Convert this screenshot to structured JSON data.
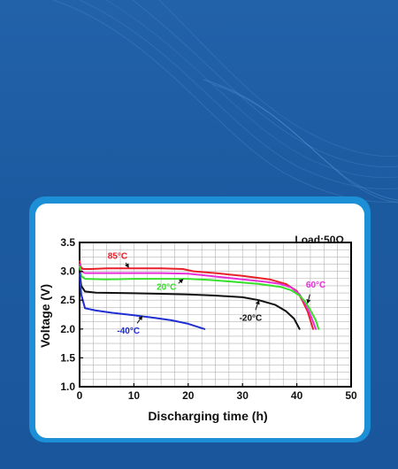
{
  "chart_data": {
    "type": "line",
    "title": "",
    "xlabel": "Discharging time (h)",
    "ylabel": "Voltage (V)",
    "xlim": [
      0,
      50
    ],
    "ylim": [
      1.0,
      3.5
    ],
    "xticks": [
      "0",
      "10",
      "20",
      "30",
      "40",
      "50"
    ],
    "yticks": [
      "1.0",
      "1.5",
      "2.0",
      "2.5",
      "3.0",
      "3.5"
    ],
    "grid": true,
    "annotation": "Load:50Ω",
    "series": [
      {
        "name": "85°C",
        "color": "#e8202a",
        "points": [
          [
            0,
            3.18
          ],
          [
            0.2,
            3.08
          ],
          [
            0.6,
            3.04
          ],
          [
            2,
            3.04
          ],
          [
            5,
            3.05
          ],
          [
            10,
            3.05
          ],
          [
            15,
            3.05
          ],
          [
            19,
            3.04
          ],
          [
            21,
            3.0
          ],
          [
            25,
            2.97
          ],
          [
            30,
            2.92
          ],
          [
            35,
            2.86
          ],
          [
            38,
            2.78
          ],
          [
            40,
            2.66
          ],
          [
            41,
            2.5
          ],
          [
            42,
            2.3
          ],
          [
            42.5,
            2.15
          ],
          [
            43,
            2.0
          ]
        ]
      },
      {
        "name": "60°C",
        "color": "#e62fd8",
        "points": [
          [
            0,
            3.12
          ],
          [
            0.3,
            3.0
          ],
          [
            1,
            2.97
          ],
          [
            5,
            2.97
          ],
          [
            10,
            2.97
          ],
          [
            15,
            2.97
          ],
          [
            20,
            2.96
          ],
          [
            22,
            2.94
          ],
          [
            26,
            2.9
          ],
          [
            30,
            2.86
          ],
          [
            34,
            2.82
          ],
          [
            37,
            2.78
          ],
          [
            39,
            2.72
          ],
          [
            40.5,
            2.6
          ],
          [
            41.5,
            2.45
          ],
          [
            42.5,
            2.25
          ],
          [
            43.5,
            2.0
          ]
        ]
      },
      {
        "name": "20°C",
        "color": "#37e02a",
        "points": [
          [
            0,
            3.08
          ],
          [
            0.3,
            2.92
          ],
          [
            1,
            2.87
          ],
          [
            5,
            2.86
          ],
          [
            10,
            2.87
          ],
          [
            15,
            2.87
          ],
          [
            20,
            2.87
          ],
          [
            24,
            2.85
          ],
          [
            28,
            2.82
          ],
          [
            33,
            2.78
          ],
          [
            37,
            2.73
          ],
          [
            39,
            2.67
          ],
          [
            40.5,
            2.58
          ],
          [
            41.5,
            2.48
          ],
          [
            42.5,
            2.33
          ],
          [
            43.5,
            2.15
          ],
          [
            44,
            2.0
          ]
        ]
      },
      {
        "name": "-20°C",
        "color": "#111111",
        "points": [
          [
            0,
            3.0
          ],
          [
            0.3,
            2.75
          ],
          [
            1,
            2.65
          ],
          [
            3,
            2.63
          ],
          [
            10,
            2.62
          ],
          [
            15,
            2.61
          ],
          [
            20,
            2.6
          ],
          [
            25,
            2.58
          ],
          [
            30,
            2.55
          ],
          [
            33,
            2.5
          ],
          [
            36,
            2.42
          ],
          [
            38,
            2.31
          ],
          [
            39.5,
            2.18
          ],
          [
            40.5,
            2.0
          ]
        ]
      },
      {
        "name": "-40°C",
        "color": "#1f2fd1",
        "points": [
          [
            0,
            2.96
          ],
          [
            0.3,
            2.6
          ],
          [
            1,
            2.36
          ],
          [
            3,
            2.32
          ],
          [
            6,
            2.28
          ],
          [
            10,
            2.24
          ],
          [
            14,
            2.19
          ],
          [
            17,
            2.15
          ],
          [
            20,
            2.09
          ],
          [
            23,
            2.0
          ]
        ]
      }
    ]
  }
}
